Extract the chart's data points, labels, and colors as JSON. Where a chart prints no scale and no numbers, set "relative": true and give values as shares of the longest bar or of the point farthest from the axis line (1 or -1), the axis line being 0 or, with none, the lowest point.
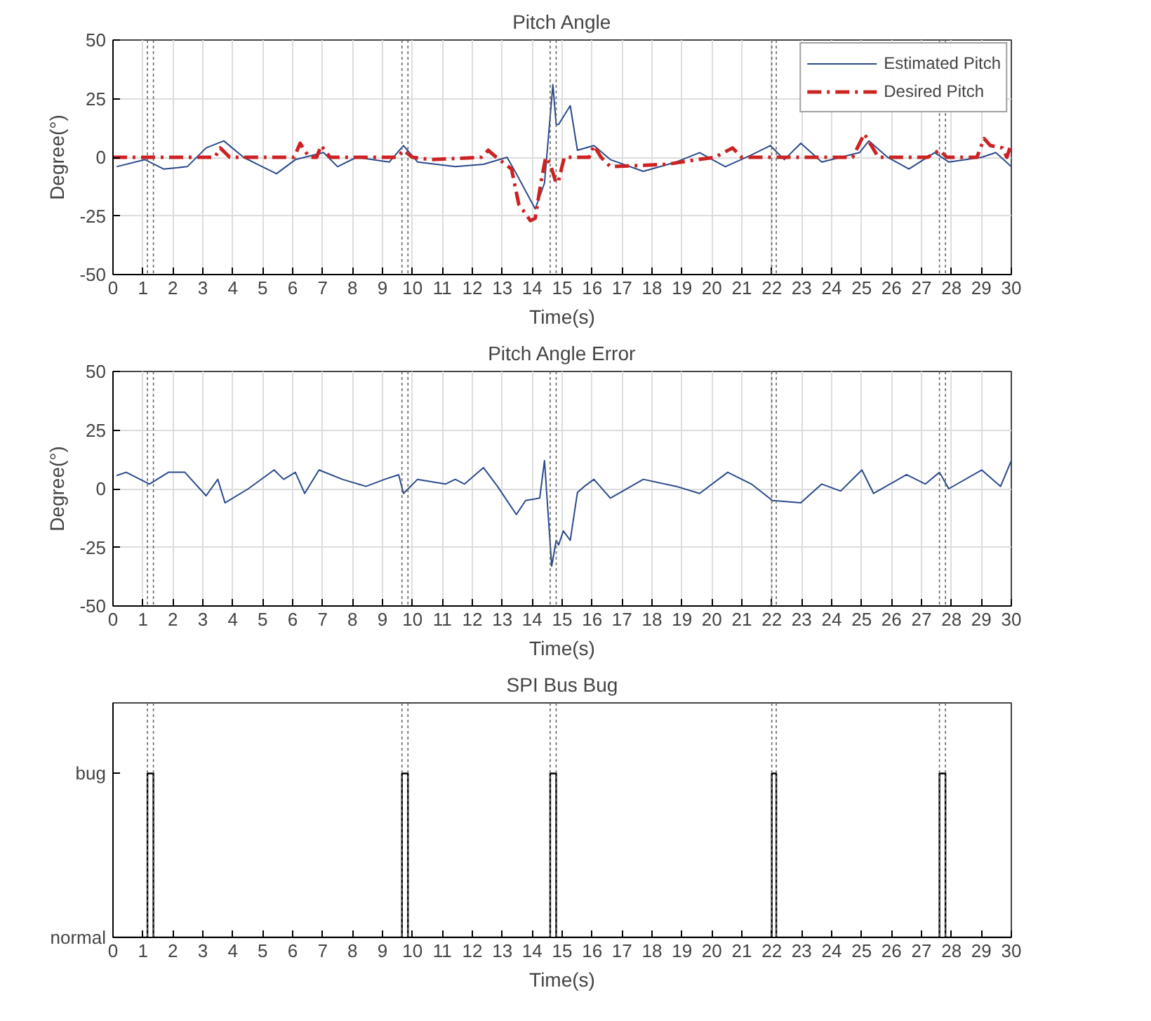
{
  "chart_data": [
    {
      "type": "line",
      "title": "Pitch Angle",
      "xlabel": "Time(s)",
      "ylabel": "Degree(°)",
      "xlim": [
        0,
        30
      ],
      "xticks": [
        0,
        1,
        2,
        3,
        4,
        5,
        6,
        7,
        8,
        9,
        10,
        11,
        12,
        13,
        14,
        15,
        16,
        17,
        18,
        19,
        20,
        21,
        22,
        23,
        24,
        25,
        26,
        27,
        28,
        29,
        30
      ],
      "ylim": [
        -50,
        50
      ],
      "yticks": [
        -50,
        -25,
        0,
        25,
        50
      ],
      "grid": true,
      "legend": "top right",
      "series": [
        {
          "name": "Estimated Pitch",
          "color": "#2b4a8b",
          "line_style": "solid",
          "x": [
            0.12,
            1.07,
            1.69,
            2.48,
            3.11,
            3.7,
            4.36,
            4.83,
            5.46,
            6.09,
            7.03,
            7.5,
            8.13,
            9.23,
            9.7,
            10.17,
            11.43,
            12.37,
            13.16,
            13.47,
            14.1,
            14.41,
            14.69,
            14.8,
            14.88,
            15.27,
            15.51,
            16.06,
            16.61,
            17.71,
            18.81,
            19.59,
            20.45,
            21.32,
            21.95,
            22.42,
            22.97,
            23.67,
            24.93,
            25.24,
            25.87,
            26.58,
            27.44,
            27.91,
            29.01,
            29.48,
            30.0
          ],
          "values": [
            -4,
            -1,
            -5,
            -4,
            4,
            7,
            0,
            -3,
            -7,
            -1,
            2,
            -4,
            0,
            -2,
            5,
            -2,
            -4,
            -3,
            0,
            -7,
            -22,
            -11,
            31,
            14,
            14,
            22,
            3,
            5,
            -1,
            -6,
            -2,
            2,
            -4,
            1,
            5,
            -1,
            6,
            -2,
            2,
            7,
            0,
            -5,
            2,
            -2,
            0,
            2,
            -4
          ]
        },
        {
          "name": "Desired Pitch",
          "color": "#cc2222",
          "line_style": "dashdot",
          "x": [
            0,
            3.4,
            3.58,
            3.9,
            6.05,
            6.25,
            6.55,
            6.8,
            6.95,
            7.25,
            9.5,
            9.7,
            10.0,
            10.6,
            12.3,
            12.53,
            12.8,
            13.31,
            13.55,
            13.94,
            14.1,
            14.3,
            14.45,
            14.6,
            14.8,
            14.88,
            15.07,
            15.9,
            16.06,
            16.3,
            16.61,
            18.5,
            19.5,
            20.1,
            20.69,
            21.0,
            24.7,
            25.09,
            25.56,
            27.2,
            27.6,
            27.85,
            28.85,
            29.09,
            29.3,
            29.7,
            29.85,
            30.0
          ],
          "values": [
            0,
            0,
            4,
            0,
            0,
            6,
            0,
            0,
            5,
            0,
            0,
            3,
            0,
            -1,
            0,
            3,
            0,
            -5,
            -20,
            -27,
            -26,
            -10,
            0,
            -3,
            -11,
            -10,
            0,
            0,
            5,
            0,
            -4,
            -3,
            -1,
            0,
            4,
            0,
            0,
            10,
            0,
            0,
            3,
            0,
            0,
            8,
            5,
            4,
            0,
            6
          ]
        }
      ],
      "ref_lines": [
        {
          "axis": "x",
          "value": 1.15,
          "color": "#666666",
          "line_style": "dotted"
        },
        {
          "axis": "x",
          "value": 1.35,
          "color": "#666666",
          "line_style": "dotted"
        },
        {
          "axis": "x",
          "value": 9.65,
          "color": "#666666",
          "line_style": "dotted"
        },
        {
          "axis": "x",
          "value": 9.85,
          "color": "#666666",
          "line_style": "dotted"
        },
        {
          "axis": "x",
          "value": 14.6,
          "color": "#666666",
          "line_style": "dotted"
        },
        {
          "axis": "x",
          "value": 14.8,
          "color": "#666666",
          "line_style": "dotted"
        },
        {
          "axis": "x",
          "value": 22.0,
          "color": "#666666",
          "line_style": "dotted"
        },
        {
          "axis": "x",
          "value": 22.15,
          "color": "#666666",
          "line_style": "dotted"
        },
        {
          "axis": "x",
          "value": 27.6,
          "color": "#666666",
          "line_style": "dotted"
        },
        {
          "axis": "x",
          "value": 27.8,
          "color": "#666666",
          "line_style": "dotted"
        }
      ]
    },
    {
      "type": "line",
      "title": "Pitch Angle Error",
      "xlabel": "Time(s)",
      "ylabel": "Degree(°)",
      "xlim": [
        0,
        30
      ],
      "xticks": [
        0,
        1,
        2,
        3,
        4,
        5,
        6,
        7,
        8,
        9,
        10,
        11,
        12,
        13,
        14,
        15,
        16,
        17,
        18,
        19,
        20,
        21,
        22,
        23,
        24,
        25,
        26,
        27,
        28,
        29,
        30
      ],
      "ylim": [
        -50,
        50
      ],
      "yticks": [
        -50,
        -25,
        0,
        25,
        50
      ],
      "grid": true,
      "series": [
        {
          "color": "#2b4a8b",
          "line_style": "solid",
          "x": [
            0.12,
            0.44,
            1.22,
            1.85,
            2.4,
            3.11,
            3.5,
            3.74,
            4.52,
            5.38,
            5.7,
            6.09,
            6.4,
            6.88,
            7.66,
            8.45,
            9.07,
            9.54,
            9.7,
            10.17,
            11.1,
            11.43,
            11.74,
            12.37,
            12.84,
            13.47,
            13.78,
            14.25,
            14.41,
            14.65,
            14.8,
            14.88,
            15.04,
            15.27,
            15.51,
            15.74,
            16.06,
            16.61,
            17.71,
            18.81,
            19.59,
            20.53,
            21.32,
            22.02,
            22.97,
            23.67,
            24.3,
            25.01,
            25.4,
            26.5,
            27.13,
            27.6,
            27.91,
            29.01,
            29.64,
            30.0
          ],
          "values": [
            5.6,
            7,
            2,
            7,
            7,
            -3,
            4,
            -6,
            0,
            8,
            4,
            7,
            -2,
            8,
            4,
            1,
            4,
            6,
            -2,
            4,
            2,
            4,
            2,
            9,
            1,
            -11,
            -5,
            -4,
            12,
            -33,
            -22,
            -24,
            -18,
            -22,
            -1.6,
            1,
            4,
            -4,
            4,
            1,
            -2,
            7,
            2,
            -5,
            -6,
            2,
            -1,
            8,
            -2,
            6,
            2,
            7,
            0,
            8,
            1,
            12
          ]
        }
      ],
      "ref_lines": [
        {
          "axis": "x",
          "value": 1.15,
          "color": "#666666",
          "line_style": "dotted"
        },
        {
          "axis": "x",
          "value": 1.35,
          "color": "#666666",
          "line_style": "dotted"
        },
        {
          "axis": "x",
          "value": 9.65,
          "color": "#666666",
          "line_style": "dotted"
        },
        {
          "axis": "x",
          "value": 9.85,
          "color": "#666666",
          "line_style": "dotted"
        },
        {
          "axis": "x",
          "value": 14.6,
          "color": "#666666",
          "line_style": "dotted"
        },
        {
          "axis": "x",
          "value": 14.8,
          "color": "#666666",
          "line_style": "dotted"
        },
        {
          "axis": "x",
          "value": 22.0,
          "color": "#666666",
          "line_style": "dotted"
        },
        {
          "axis": "x",
          "value": 22.15,
          "color": "#666666",
          "line_style": "dotted"
        },
        {
          "axis": "x",
          "value": 27.6,
          "color": "#666666",
          "line_style": "dotted"
        },
        {
          "axis": "x",
          "value": 27.8,
          "color": "#666666",
          "line_style": "dotted"
        }
      ]
    },
    {
      "type": "step",
      "title": "SPI Bus Bug",
      "xlabel": "Time(s)",
      "xlim": [
        0,
        30
      ],
      "xticks": [
        0,
        1,
        2,
        3,
        4,
        5,
        6,
        7,
        8,
        9,
        10,
        11,
        12,
        13,
        14,
        15,
        16,
        17,
        18,
        19,
        20,
        21,
        22,
        23,
        24,
        25,
        26,
        27,
        28,
        29,
        30
      ],
      "relative": true,
      "annotations": [
        "normal",
        "bug"
      ],
      "series": [
        {
          "color": "#000000",
          "line_style": "solid",
          "x": [
            0,
            1.15,
            1.35,
            9.65,
            9.85,
            14.6,
            14.8,
            22.0,
            22.15,
            27.6,
            27.8,
            30
          ],
          "values": [
            0,
            1,
            0,
            1,
            0,
            1,
            0,
            1,
            0,
            1,
            0,
            0
          ]
        }
      ],
      "ref_lines": [
        {
          "axis": "x",
          "value": 1.15,
          "color": "#666666",
          "line_style": "dotted"
        },
        {
          "axis": "x",
          "value": 1.35,
          "color": "#666666",
          "line_style": "dotted"
        },
        {
          "axis": "x",
          "value": 9.65,
          "color": "#666666",
          "line_style": "dotted"
        },
        {
          "axis": "x",
          "value": 9.85,
          "color": "#666666",
          "line_style": "dotted"
        },
        {
          "axis": "x",
          "value": 14.6,
          "color": "#666666",
          "line_style": "dotted"
        },
        {
          "axis": "x",
          "value": 14.8,
          "color": "#666666",
          "line_style": "dotted"
        },
        {
          "axis": "x",
          "value": 22.0,
          "color": "#666666",
          "line_style": "dotted"
        },
        {
          "axis": "x",
          "value": 22.15,
          "color": "#666666",
          "line_style": "dotted"
        },
        {
          "axis": "x",
          "value": 27.6,
          "color": "#666666",
          "line_style": "dotted"
        },
        {
          "axis": "x",
          "value": 27.8,
          "color": "#666666",
          "line_style": "dotted"
        }
      ]
    }
  ]
}
